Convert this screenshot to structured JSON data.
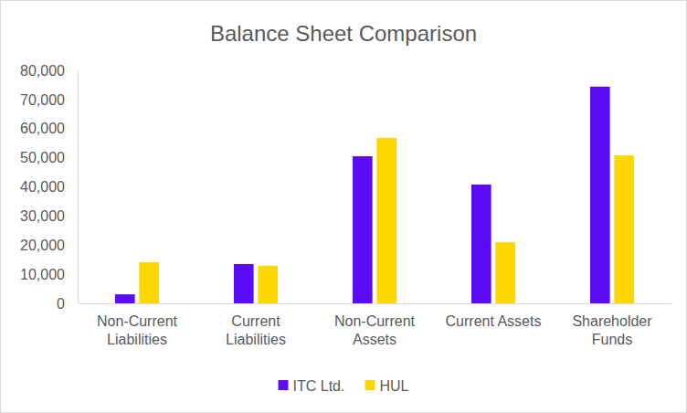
{
  "chart_data": {
    "type": "bar",
    "title": "Balance Sheet Comparison",
    "categories": [
      "Non-Current Liabilities",
      "Current Liabilities",
      "Non-Current Assets",
      "Current Assets",
      "Shareholder Funds"
    ],
    "series": [
      {
        "name": "ITC Ltd.",
        "color": "#5b0cf5",
        "values": [
          3100,
          13500,
          50500,
          40800,
          74400
        ]
      },
      {
        "name": "HUL",
        "color": "#ffd700",
        "values": [
          14100,
          12900,
          56800,
          21000,
          50800
        ]
      }
    ],
    "ylim": [
      0,
      80000
    ],
    "yticks": [
      0,
      {
        "value": 10000,
        "label": "10,000"
      },
      {
        "value": 20000,
        "label": "20,000"
      },
      {
        "value": 30000,
        "label": "30,000"
      },
      {
        "value": 40000,
        "label": "40,000"
      },
      {
        "value": 50000,
        "label": "50,000"
      },
      {
        "value": 60000,
        "label": "60,000"
      },
      {
        "value": 70000,
        "label": "70,000"
      },
      {
        "value": 80000,
        "label": "80,000"
      }
    ],
    "grid": false,
    "legend": "bottom"
  }
}
